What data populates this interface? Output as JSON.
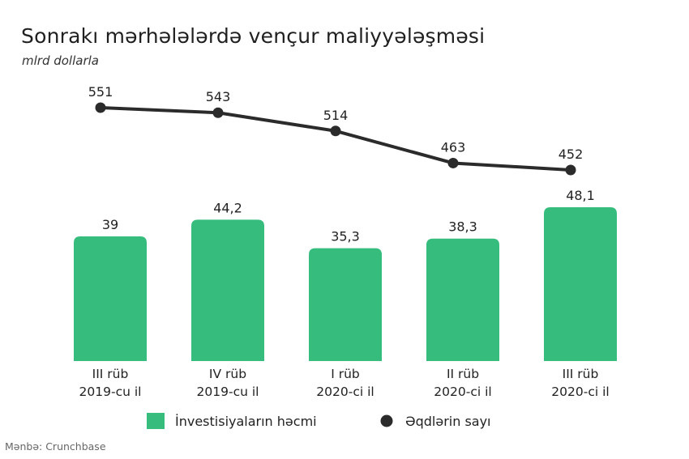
{
  "title": "Sonrakı mərhələlərdə vençur maliyyələşməsi",
  "subtitle": "mlrd dollarla",
  "source": "Mənbə: Crunchbase",
  "colors": {
    "bar": "#36bd7e",
    "line": "#2b2b2b",
    "point": "#2b2b2b",
    "text": "#222222"
  },
  "chart_data": {
    "type": "bar",
    "categories": [
      [
        "III rüb",
        "2019-cu il"
      ],
      [
        "IV rüb",
        "2019-cu il"
      ],
      [
        "I rüb",
        "2020-ci il"
      ],
      [
        "II rüb",
        "2020-ci il"
      ],
      [
        "III rüb",
        "2020-ci il"
      ]
    ],
    "series": [
      {
        "name": "İnvestisiyaların həcmi",
        "type": "bar",
        "values": [
          39,
          44.2,
          35.3,
          38.3,
          48.1
        ],
        "labels": [
          "39",
          "44,2",
          "35,3",
          "38,3",
          "48,1"
        ]
      },
      {
        "name": "Əqdlərin sayı",
        "type": "line",
        "values": [
          551,
          543,
          514,
          463,
          452
        ],
        "labels": [
          "551",
          "543",
          "514",
          "463",
          "452"
        ]
      }
    ],
    "legend": "bottom",
    "grid": false
  }
}
